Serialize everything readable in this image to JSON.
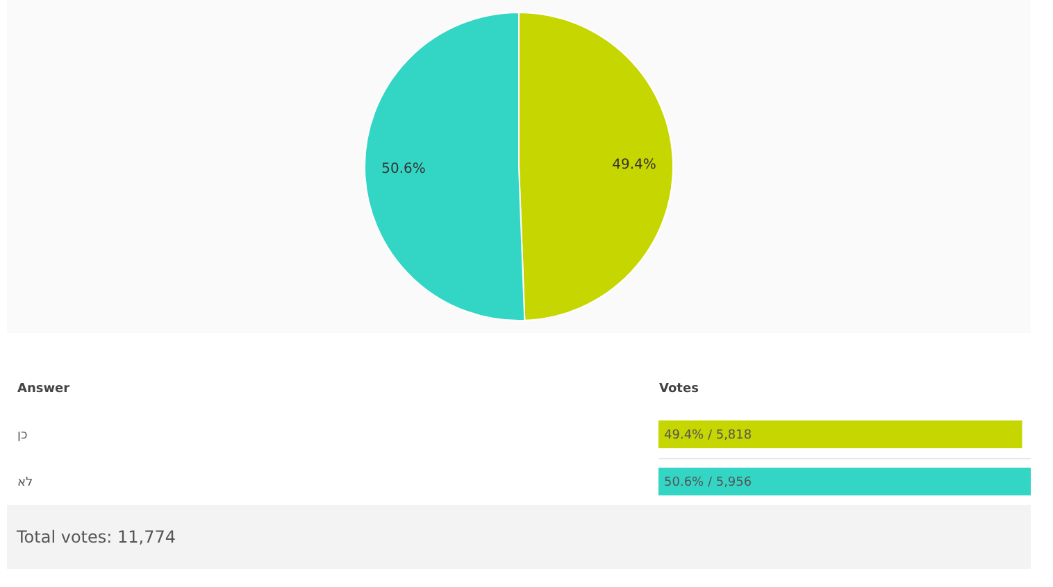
{
  "chart_data": [
    {
      "type": "pie",
      "categories": [
        null,
        null
      ],
      "values": [
        49.4,
        50.6
      ],
      "colors": [
        "#c5d600",
        "#33d6c5"
      ],
      "value_labels": [
        "49.4%",
        "50.6%"
      ]
    },
    {
      "type": "bar",
      "orientation": "horizontal",
      "categories": [
        "כן",
        "לא"
      ],
      "values": [
        5818,
        5956
      ],
      "colors": [
        "#c5d600",
        "#33d6c5"
      ],
      "value_labels": [
        "49.4% / 5,818",
        "50.6% / 5,956"
      ],
      "xlabel": "Votes",
      "ylabel": "Answer",
      "tick_labels": "y",
      "grid": "y",
      "annotations": [
        "Total votes: 11,774"
      ]
    }
  ]
}
